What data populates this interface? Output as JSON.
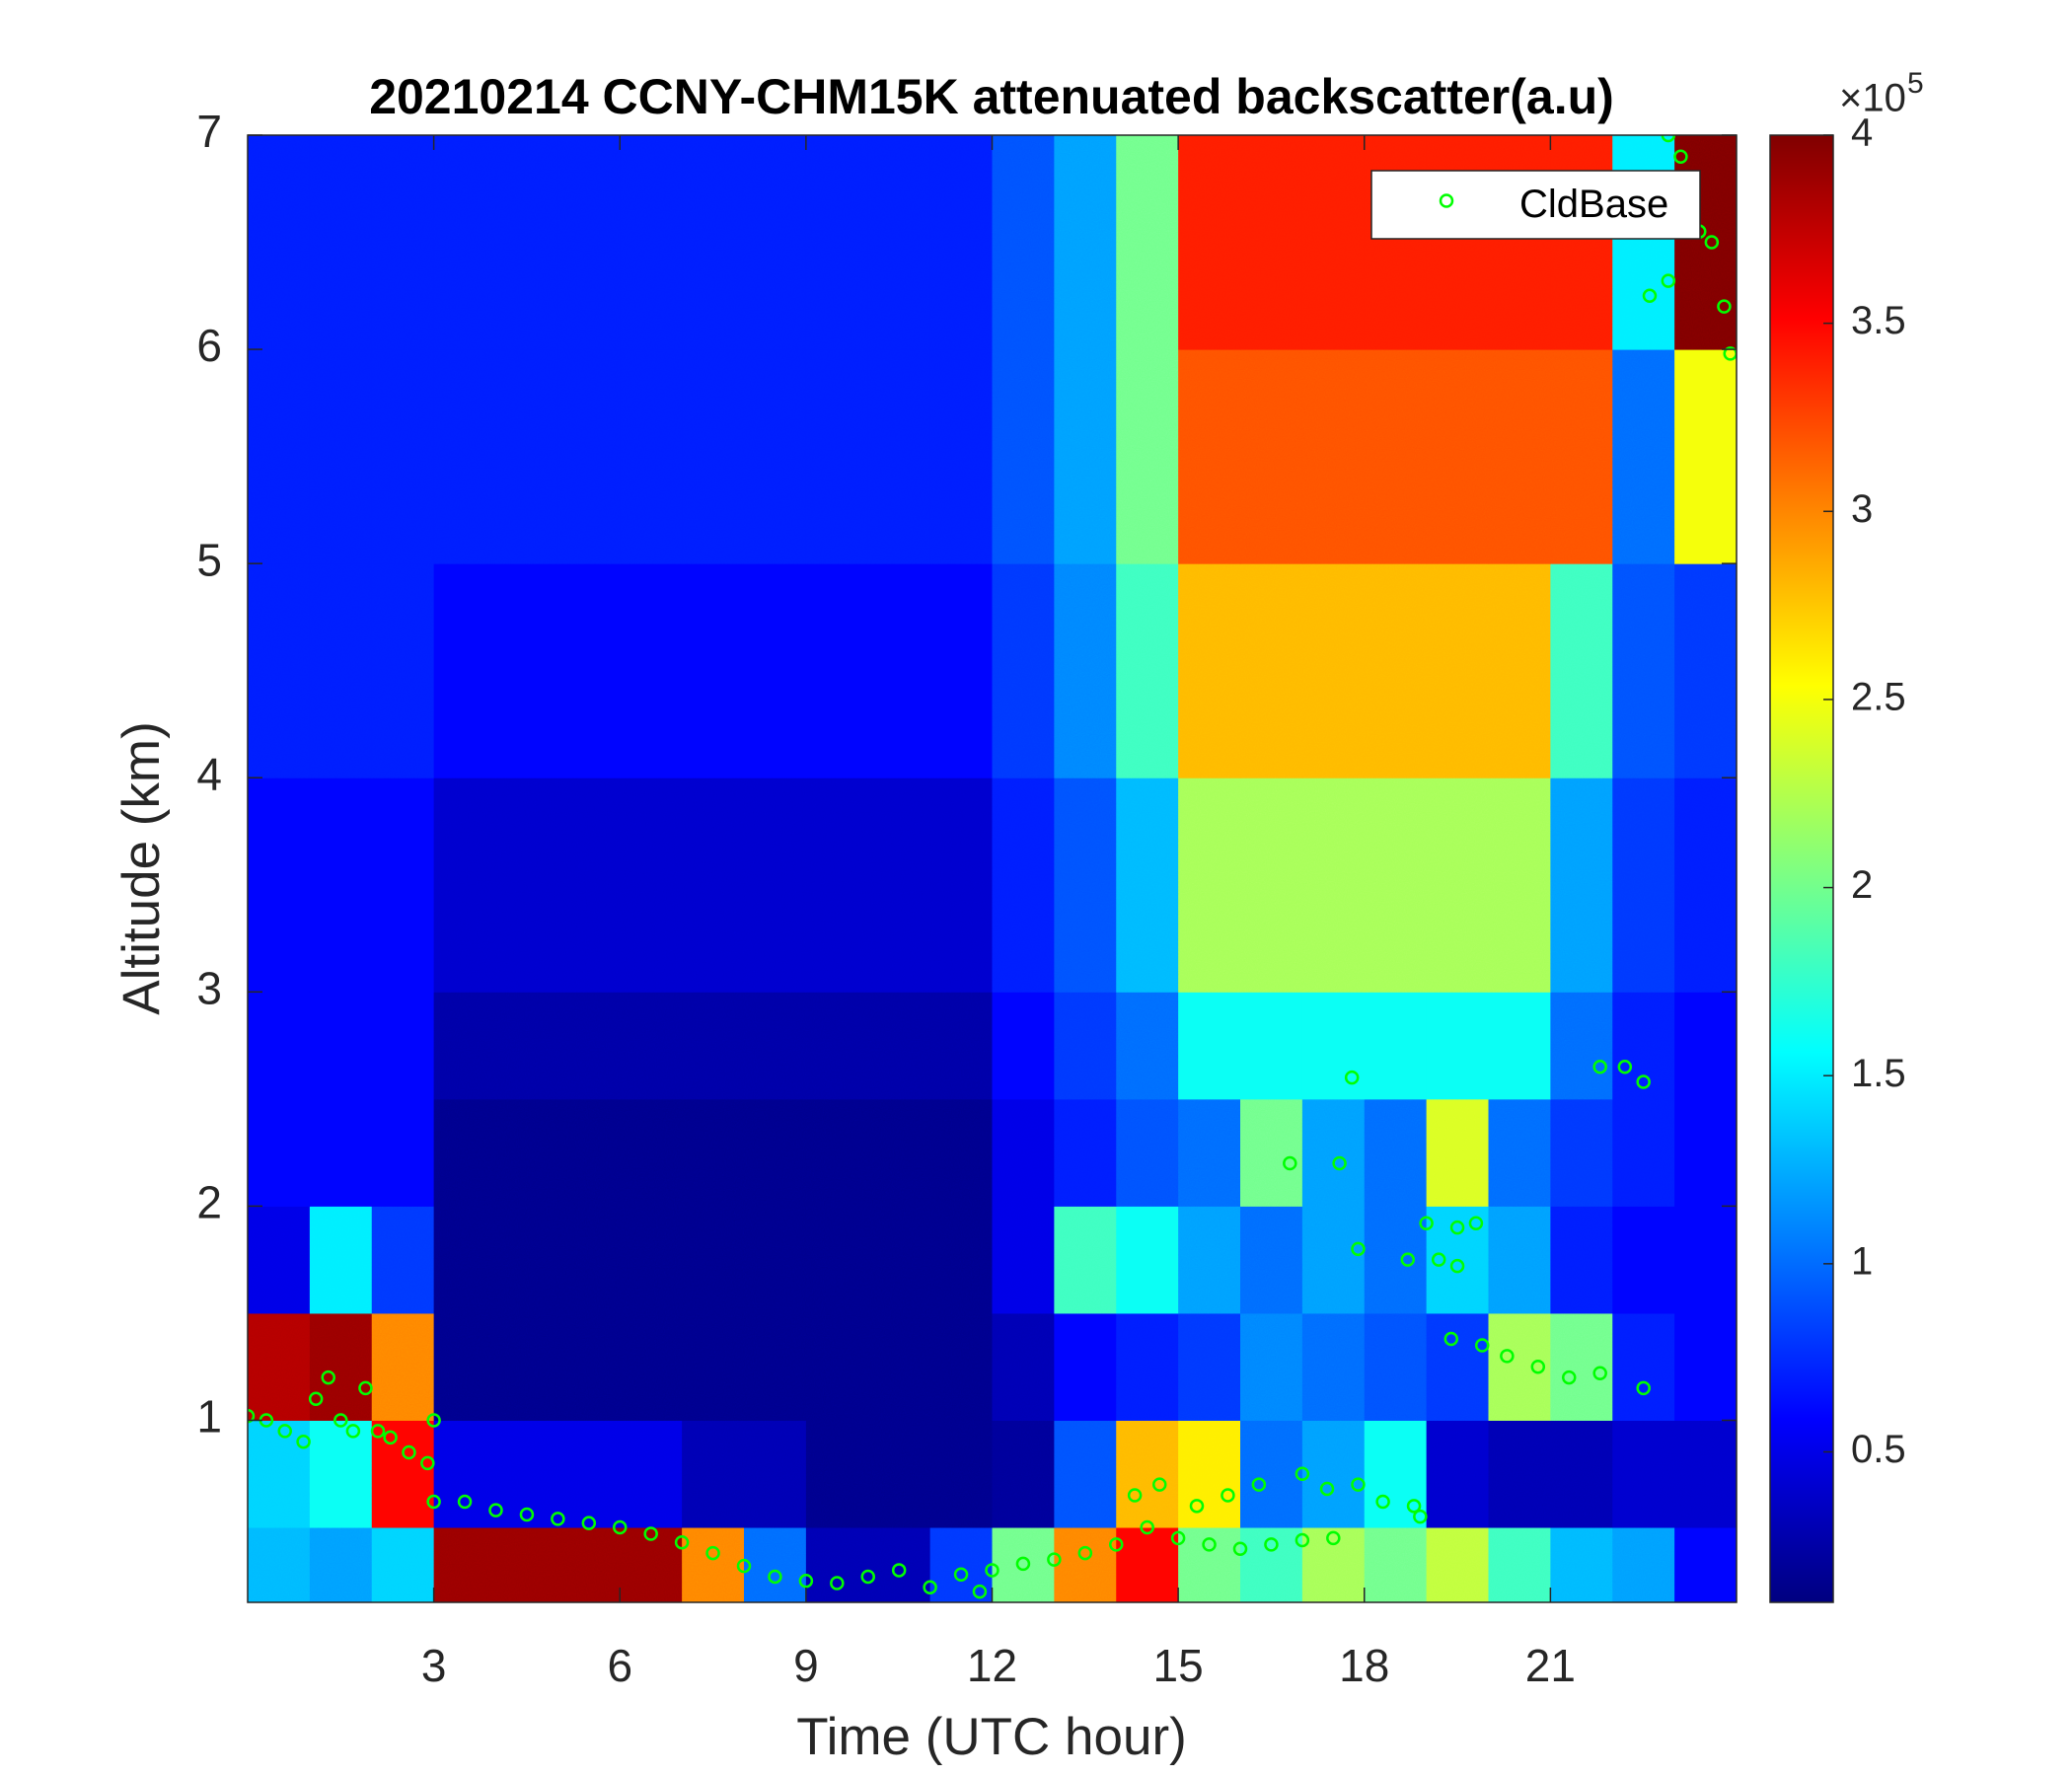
{
  "chart_data": {
    "type": "heatmap",
    "title": "20210214 CCNY-CHM15K attenuated backscatter(a.u)",
    "xlabel": "Time (UTC hour)",
    "ylabel": "Altitude (km)",
    "xlim": [
      0,
      24
    ],
    "ylim": [
      0.15,
      7
    ],
    "xticks": [
      3,
      6,
      9,
      12,
      15,
      18,
      21
    ],
    "yticks": [
      1,
      2,
      3,
      4,
      5,
      6,
      7
    ],
    "colormap": "jet",
    "clim": [
      0.1,
      4
    ],
    "cticks": [
      0.5,
      1,
      1.5,
      2,
      2.5,
      3,
      3.5,
      4
    ],
    "colorbar_multiplier": "×10",
    "colorbar_exponent": 5,
    "x_edges": [
      0,
      1,
      2,
      3,
      4,
      5,
      6,
      7,
      8,
      9,
      10,
      11,
      12,
      13,
      14,
      15,
      16,
      17,
      18,
      19,
      20,
      21,
      22,
      23,
      24
    ],
    "y_edges": [
      0.15,
      0.5,
      1,
      1.5,
      2,
      2.5,
      3,
      4,
      5,
      6,
      7
    ],
    "z": [
      [
        1.3,
        1.2,
        1.4,
        3.9,
        3.9,
        3.9,
        3.9,
        3.0,
        1.0,
        0.3,
        0.3,
        0.8,
        2.0,
        3.0,
        3.5,
        2.0,
        1.8,
        2.2,
        2.0,
        2.3,
        1.8,
        1.3,
        1.2,
        0.6
      ],
      [
        1.4,
        1.6,
        3.5,
        0.5,
        0.5,
        0.5,
        0.5,
        0.3,
        0.3,
        0.15,
        0.15,
        0.15,
        0.2,
        0.9,
        2.8,
        2.6,
        1.0,
        1.2,
        1.6,
        0.4,
        0.3,
        0.3,
        0.4,
        0.4
      ],
      [
        3.8,
        3.9,
        3.0,
        0.15,
        0.15,
        0.15,
        0.15,
        0.15,
        0.15,
        0.15,
        0.15,
        0.15,
        0.3,
        0.6,
        0.7,
        0.8,
        1.1,
        1.0,
        0.9,
        0.8,
        2.2,
        2.0,
        0.7,
        0.6
      ],
      [
        0.5,
        1.5,
        0.8,
        0.15,
        0.15,
        0.15,
        0.15,
        0.15,
        0.15,
        0.15,
        0.15,
        0.15,
        0.5,
        1.8,
        1.6,
        1.2,
        1.0,
        1.2,
        1.0,
        1.4,
        1.2,
        0.7,
        0.6,
        0.6
      ],
      [
        0.6,
        0.6,
        0.6,
        0.15,
        0.15,
        0.15,
        0.15,
        0.15,
        0.15,
        0.15,
        0.15,
        0.15,
        0.5,
        0.7,
        0.9,
        1.0,
        2.0,
        1.2,
        1.0,
        2.4,
        1.0,
        0.8,
        0.7,
        0.6
      ],
      [
        0.6,
        0.6,
        0.6,
        0.25,
        0.25,
        0.25,
        0.25,
        0.25,
        0.25,
        0.25,
        0.25,
        0.25,
        0.6,
        0.8,
        1.0,
        1.6,
        1.6,
        1.6,
        1.6,
        1.6,
        1.6,
        1.0,
        0.7,
        0.6
      ],
      [
        0.6,
        0.6,
        0.6,
        0.4,
        0.4,
        0.4,
        0.4,
        0.4,
        0.4,
        0.4,
        0.4,
        0.4,
        0.7,
        0.9,
        1.3,
        2.2,
        2.2,
        2.2,
        2.2,
        2.2,
        2.2,
        1.2,
        0.8,
        0.7
      ],
      [
        0.7,
        0.7,
        0.7,
        0.6,
        0.6,
        0.6,
        0.6,
        0.6,
        0.6,
        0.6,
        0.6,
        0.6,
        0.8,
        1.1,
        1.8,
        2.8,
        2.8,
        2.8,
        2.8,
        2.8,
        2.8,
        1.8,
        0.9,
        0.8
      ],
      [
        0.7,
        0.7,
        0.7,
        0.7,
        0.7,
        0.7,
        0.7,
        0.7,
        0.7,
        0.7,
        0.7,
        0.7,
        0.9,
        1.2,
        2.0,
        3.2,
        3.2,
        3.2,
        3.2,
        3.2,
        3.2,
        3.2,
        1.0,
        2.5
      ],
      [
        0.7,
        0.7,
        0.7,
        0.7,
        0.7,
        0.7,
        0.7,
        0.7,
        0.7,
        0.7,
        0.7,
        0.7,
        0.9,
        1.2,
        2.0,
        3.4,
        3.4,
        3.4,
        3.4,
        3.4,
        3.4,
        3.4,
        1.5,
        4.0
      ]
    ],
    "legend": "northeast",
    "series": [
      {
        "name": "CldBase",
        "type": "scatter",
        "marker": "circle",
        "color": "#00ff00",
        "x": [
          0.0,
          0.3,
          0.6,
          0.9,
          1.1,
          1.3,
          1.5,
          1.7,
          1.9,
          2.1,
          2.3,
          2.6,
          2.9,
          3.0,
          3.0,
          3.5,
          4.0,
          4.5,
          5.0,
          5.5,
          6.0,
          6.5,
          7.0,
          7.5,
          8.0,
          8.5,
          9.0,
          9.5,
          10.0,
          10.5,
          11.0,
          11.5,
          11.8,
          12.0,
          12.5,
          13.0,
          13.5,
          14.0,
          14.5,
          15.0,
          15.5,
          16.0,
          16.5,
          17.0,
          17.5,
          14.3,
          14.7,
          15.3,
          15.8,
          16.3,
          17.0,
          17.4,
          17.9,
          18.3,
          18.8,
          18.9,
          16.8,
          17.6,
          17.8,
          17.9,
          18.7,
          19.2,
          19.5,
          19.0,
          19.5,
          19.8,
          19.4,
          19.9,
          20.3,
          20.8,
          21.3,
          21.8,
          22.5,
          21.8,
          22.2,
          22.5,
          22.6,
          22.9,
          22.9,
          23.1,
          23.4,
          23.6,
          23.8,
          23.9
        ],
        "y": [
          1.02,
          1.0,
          0.95,
          0.9,
          1.1,
          1.2,
          1.0,
          0.95,
          1.15,
          0.95,
          0.92,
          0.85,
          0.8,
          1.0,
          0.62,
          0.62,
          0.58,
          0.56,
          0.54,
          0.52,
          0.5,
          0.47,
          0.43,
          0.38,
          0.32,
          0.27,
          0.25,
          0.24,
          0.27,
          0.3,
          0.22,
          0.28,
          0.2,
          0.3,
          0.33,
          0.35,
          0.38,
          0.42,
          0.5,
          0.45,
          0.42,
          0.4,
          0.42,
          0.44,
          0.45,
          0.65,
          0.7,
          0.6,
          0.65,
          0.7,
          0.75,
          0.68,
          0.7,
          0.62,
          0.6,
          0.55,
          2.2,
          2.2,
          2.6,
          1.8,
          1.75,
          1.75,
          1.72,
          1.92,
          1.9,
          1.92,
          1.38,
          1.35,
          1.3,
          1.25,
          1.2,
          1.22,
          1.15,
          2.65,
          2.65,
          2.58,
          6.25,
          6.32,
          7.0,
          6.9,
          6.55,
          6.5,
          6.2,
          5.98
        ]
      }
    ]
  }
}
